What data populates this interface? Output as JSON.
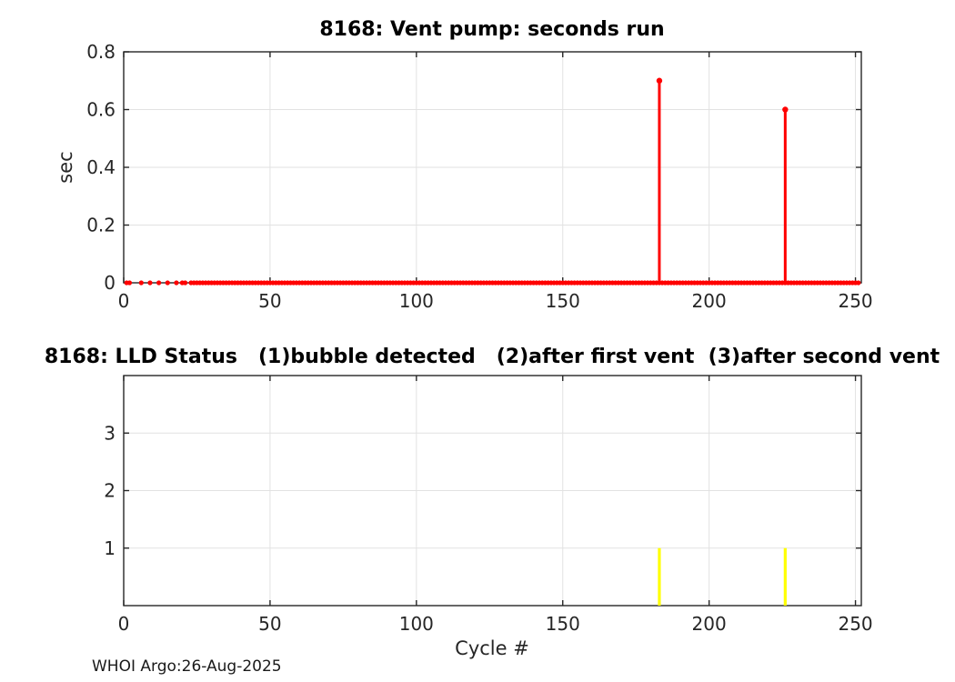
{
  "figure": {
    "watermark": "WHOI Argo:26-Aug-2025",
    "background_color": "#ffffff",
    "axis_color": "#262626",
    "grid_color": "#e2e2e2"
  },
  "chart_data": [
    {
      "type": "line",
      "subtype": "stem",
      "title": "8168: Vent pump: seconds run",
      "xlabel": "",
      "ylabel": "sec",
      "xlim": [
        0,
        252
      ],
      "ylim": [
        0,
        0.8
      ],
      "xticks": [
        0,
        50,
        100,
        150,
        200,
        250
      ],
      "yticks": [
        0,
        0.2,
        0.4,
        0.6,
        0.8
      ],
      "grid": true,
      "legend": "none",
      "series": [
        {
          "name": "vent-pump-seconds-run",
          "color": "#ff0000",
          "marker": "filled-circle",
          "style": "stem",
          "zero_cycles_sparse": [
            1,
            2,
            6,
            9,
            12,
            15,
            18,
            20,
            21
          ],
          "zero_cycles_dense_range": [
            23,
            251
          ],
          "points": [
            {
              "x": 183,
              "y": 0.7
            },
            {
              "x": 226,
              "y": 0.6
            }
          ]
        }
      ]
    },
    {
      "type": "line",
      "subtype": "vline",
      "title": "8168: LLD Status   (1)bubble detected   (2)after first vent  (3)after second vent",
      "xlabel": "Cycle #",
      "ylabel": "",
      "xlim": [
        0,
        252
      ],
      "ylim": [
        0,
        4
      ],
      "xticks": [
        0,
        50,
        100,
        150,
        200,
        250
      ],
      "yticks": [
        1,
        2,
        3
      ],
      "grid": true,
      "legend": "none",
      "series": [
        {
          "name": "lld-status",
          "color": "#ffff00",
          "style": "vline",
          "points": [
            {
              "x": 183,
              "y": 1
            },
            {
              "x": 226,
              "y": 1
            }
          ]
        }
      ]
    }
  ]
}
